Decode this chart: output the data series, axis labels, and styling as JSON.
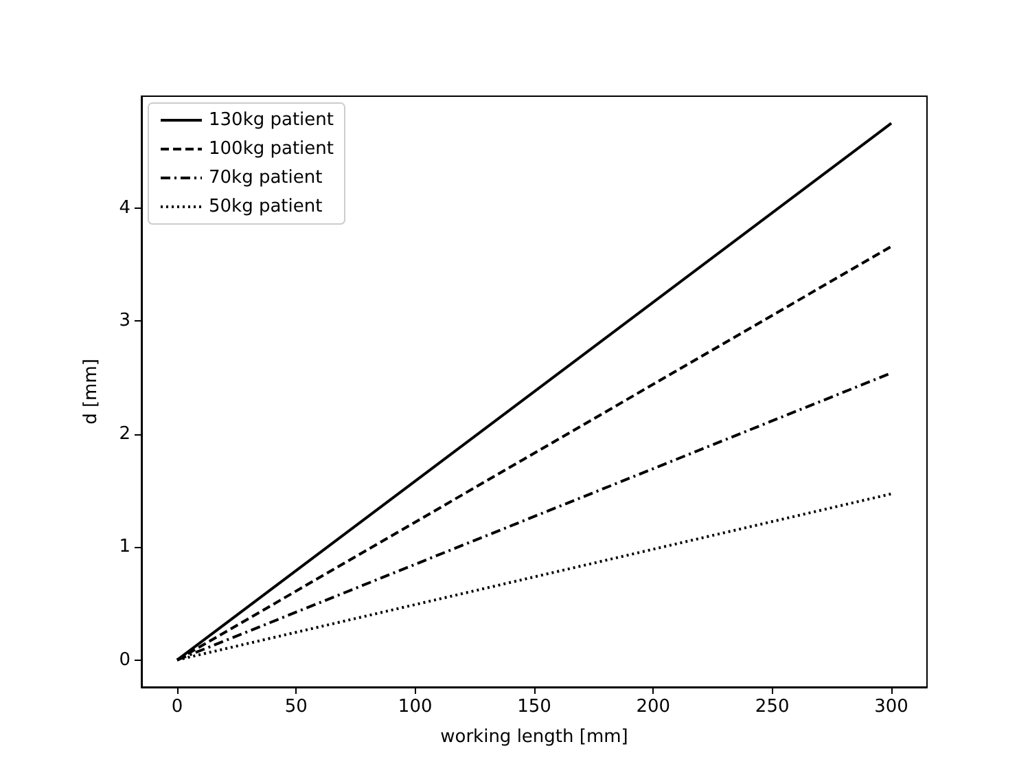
{
  "chart_data": {
    "type": "line",
    "xlabel": "working length [mm]",
    "ylabel": "d [mm]",
    "x": [
      0,
      300
    ],
    "series": [
      {
        "name": "130kg patient",
        "color": "#000000",
        "values": [
          0,
          4.75
        ],
        "line_style": "solid"
      },
      {
        "name": "100kg patient",
        "color": "#000000",
        "values": [
          0,
          3.66
        ],
        "line_style": "dashed"
      },
      {
        "name": "70kg patient",
        "color": "#000000",
        "values": [
          0,
          2.54
        ],
        "line_style": "dashdot"
      },
      {
        "name": "50kg patient",
        "color": "#000000",
        "values": [
          0,
          1.47
        ],
        "line_style": "dotted"
      }
    ],
    "xlim": [
      -15,
      315
    ],
    "xticks": [
      0,
      50,
      100,
      150,
      200,
      250,
      300
    ],
    "ylim": [
      -0.24,
      4.99
    ],
    "yticks": [
      0,
      1,
      2,
      3,
      4
    ],
    "grid": false,
    "legend": "top left",
    "marker": "none"
  }
}
